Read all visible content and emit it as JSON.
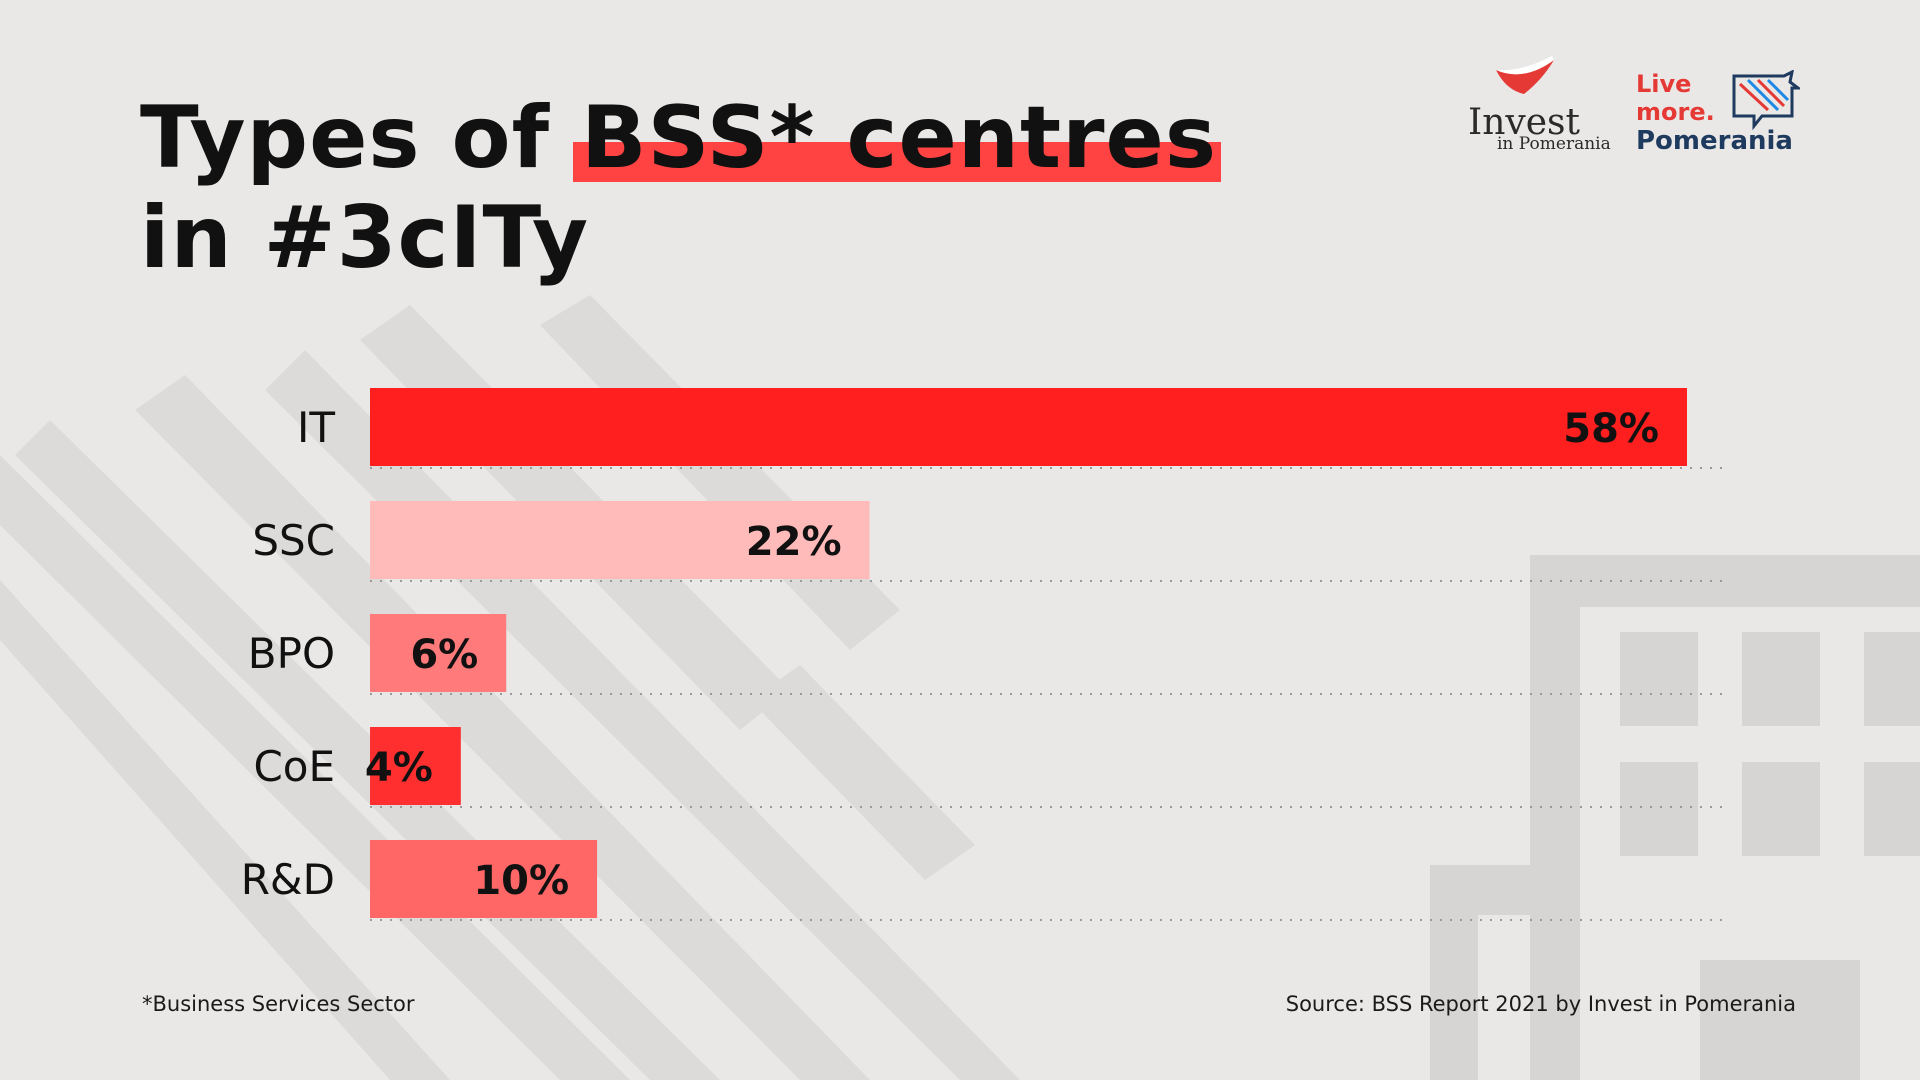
{
  "title": {
    "line1_prefix": "Types of ",
    "line1_highlight": "BSS* centres",
    "line2": "in #3cITy"
  },
  "logos": {
    "invest_word": "Invest",
    "invest_sub": "in Pomerania",
    "live_line1": "Live",
    "live_line2": "more.",
    "live_line3": "Pomerania"
  },
  "chart_data": {
    "type": "bar",
    "orientation": "horizontal",
    "categories": [
      "IT",
      "SSC",
      "BPO",
      "CoE",
      "R&D"
    ],
    "values": [
      58,
      22,
      6,
      4,
      10
    ],
    "value_labels": [
      "58%",
      "22%",
      "6%",
      "4%",
      "10%"
    ],
    "bar_colors": [
      "#ff1f1f",
      "#ffbaba",
      "#ff7b7b",
      "#ff2f2f",
      "#ff6666"
    ],
    "title": "Types of BSS* centres in #3cITy",
    "grid": "dotted baseline per row"
  },
  "footnote": "*Business Services Sector",
  "source": "Source: BSS Report 2021 by Invest in Pomerania"
}
